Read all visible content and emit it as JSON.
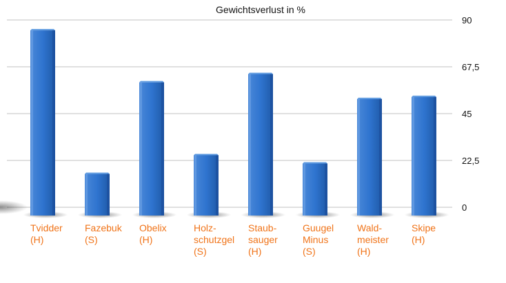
{
  "chart_data": {
    "type": "bar",
    "title": "Gewichtsverlust in %",
    "xlabel": "",
    "ylabel": "",
    "ylim": [
      0,
      90
    ],
    "yticks": [
      "0",
      "22,5",
      "45",
      "67,5",
      "90"
    ],
    "ytick_values": [
      0,
      22.5,
      45,
      67.5,
      90
    ],
    "grid": true,
    "categories": [
      [
        "Tvidder",
        "(H)"
      ],
      [
        "Fazebuk",
        "(S)"
      ],
      [
        "Obelix",
        "(H)"
      ],
      [
        "Holz-",
        "schutzgel",
        "(S)"
      ],
      [
        "Staub-",
        "sauger",
        "(H)"
      ],
      [
        "Guugel",
        "Minus",
        "(S)"
      ],
      [
        "Wald-",
        "meister",
        "(H)"
      ],
      [
        "Skipe",
        "(H)"
      ]
    ],
    "values": [
      85,
      16,
      60,
      25,
      64,
      21,
      52,
      53
    ],
    "colors": {
      "bar": "#2d6ec5",
      "bar_light": "#5f9be0",
      "bar_dark": "#1c4f9c",
      "label": "#f07318",
      "grid": "#c0c0c0"
    }
  }
}
